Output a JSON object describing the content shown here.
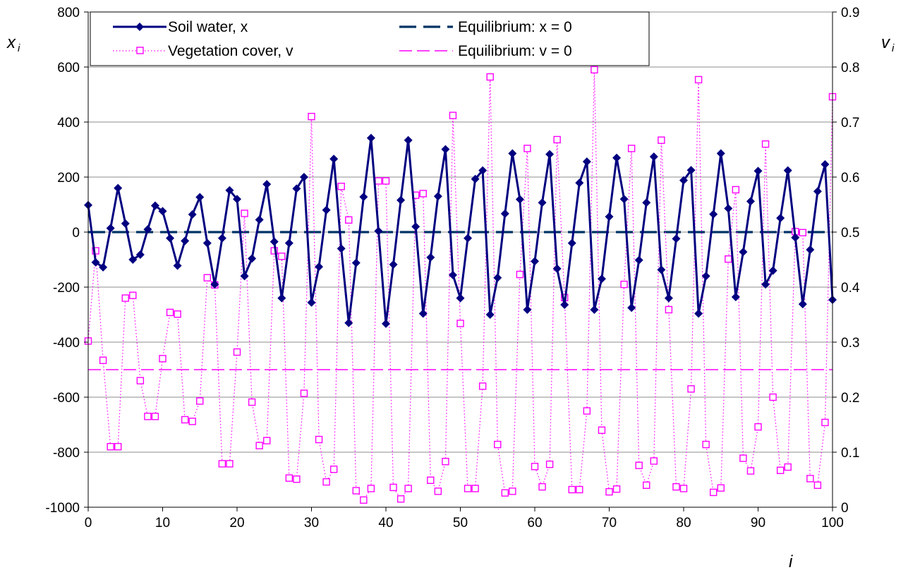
{
  "chart_data": {
    "type": "line",
    "x": [
      0,
      1,
      2,
      3,
      4,
      5,
      6,
      7,
      8,
      9,
      10,
      11,
      12,
      13,
      14,
      15,
      16,
      17,
      18,
      19,
      20,
      21,
      22,
      23,
      24,
      25,
      26,
      27,
      28,
      29,
      30,
      31,
      32,
      33,
      34,
      35,
      36,
      37,
      38,
      39,
      40,
      41,
      42,
      43,
      44,
      45,
      46,
      47,
      48,
      49,
      50,
      51,
      52,
      53,
      54,
      55,
      56,
      57,
      58,
      59,
      60,
      61,
      62,
      63,
      64,
      65,
      66,
      67,
      68,
      69,
      70,
      71,
      72,
      73,
      74,
      75,
      76,
      77,
      78,
      79,
      80,
      81,
      82,
      83,
      84,
      85,
      86,
      87,
      88,
      89,
      90,
      91,
      92,
      93,
      94,
      95,
      96,
      97,
      98,
      99,
      100
    ],
    "xlabel_main": "i",
    "xlim": [
      0,
      100
    ],
    "xticks": [
      0,
      10,
      20,
      30,
      40,
      50,
      60,
      70,
      80,
      90,
      100
    ],
    "ylim_left": [
      -1000,
      800
    ],
    "yticks_left": [
      800,
      600,
      400,
      200,
      0,
      -200,
      -400,
      -600,
      -800,
      -1000
    ],
    "ylabel_left_main": "x",
    "ylabel_left_sub": "i",
    "ylim_right": [
      0,
      0.9
    ],
    "yticks_right": [
      "0.9",
      "0.8",
      "0.7",
      "0.6",
      "0.5",
      "0.4",
      "0.3",
      "0.2",
      "0.1",
      "0"
    ],
    "ylabel_right_main": "v",
    "ylabel_right_sub": "i",
    "grid": "horizontal",
    "legend_position": "top",
    "colors": {
      "soil": "#000080",
      "veg": "#ff00ff",
      "eq_x": "#003366",
      "eq_v": "#ff00ff"
    },
    "series": [
      {
        "name": "Soil water, x",
        "axis": "left",
        "values": [
          98,
          -110,
          -128,
          14,
          160,
          31,
          -100,
          -82,
          10,
          96,
          76,
          -22,
          -122,
          -32,
          64,
          127,
          -40,
          -190,
          -22,
          152,
          120,
          -160,
          -96,
          45,
          174,
          -35,
          -240,
          -40,
          158,
          200,
          -256,
          -126,
          80,
          266,
          -60,
          -330,
          -112,
          128,
          342,
          4,
          -333,
          -118,
          116,
          334,
          20,
          -296,
          -92,
          130,
          301,
          -156,
          -240,
          -22,
          193,
          224,
          -300,
          -166,
          67,
          286,
          119,
          -282,
          -106,
          107,
          283,
          -133,
          -264,
          -40,
          179,
          256,
          -282,
          -170,
          56,
          270,
          120,
          -275,
          -102,
          107,
          274,
          -137,
          -240,
          -24,
          188,
          225,
          -296,
          -160,
          65,
          286,
          86,
          -236,
          -72,
          112,
          222,
          -190,
          -140,
          51,
          224,
          -20,
          -262,
          -64,
          148,
          246,
          -246
        ]
      },
      {
        "name": "Vegetation cover, v",
        "axis": "right",
        "values": [
          0.302,
          0.466,
          0.267,
          0.11,
          0.11,
          0.38,
          0.385,
          0.23,
          0.165,
          0.165,
          0.27,
          0.354,
          0.351,
          0.159,
          0.156,
          0.193,
          0.417,
          0.404,
          0.079,
          0.079,
          0.282,
          0.534,
          0.191,
          0.112,
          0.121,
          0.466,
          0.456,
          0.053,
          0.051,
          0.207,
          0.71,
          0.123,
          0.046,
          0.069,
          0.583,
          0.522,
          0.03,
          0.013,
          0.034,
          0.593,
          0.593,
          0.036,
          0.015,
          0.034,
          0.567,
          0.57,
          0.049,
          0.029,
          0.083,
          0.712,
          0.334,
          0.034,
          0.034,
          0.22,
          0.782,
          0.114,
          0.026,
          0.029,
          0.423,
          0.652,
          0.074,
          0.037,
          0.078,
          0.668,
          0.381,
          0.032,
          0.032,
          0.175,
          0.795,
          0.14,
          0.028,
          0.033,
          0.405,
          0.652,
          0.076,
          0.04,
          0.084,
          0.667,
          0.359,
          0.037,
          0.034,
          0.215,
          0.777,
          0.114,
          0.027,
          0.035,
          0.451,
          0.577,
          0.089,
          0.066,
          0.146,
          0.66,
          0.2,
          0.067,
          0.073,
          0.501,
          0.499,
          0.052,
          0.04,
          0.154,
          0.746
        ]
      },
      {
        "name": "Equilibrium: x = 0",
        "axis": "left",
        "constant": 0
      },
      {
        "name": "Equilibrium: v = 0",
        "axis": "left",
        "constant": -500
      }
    ]
  }
}
